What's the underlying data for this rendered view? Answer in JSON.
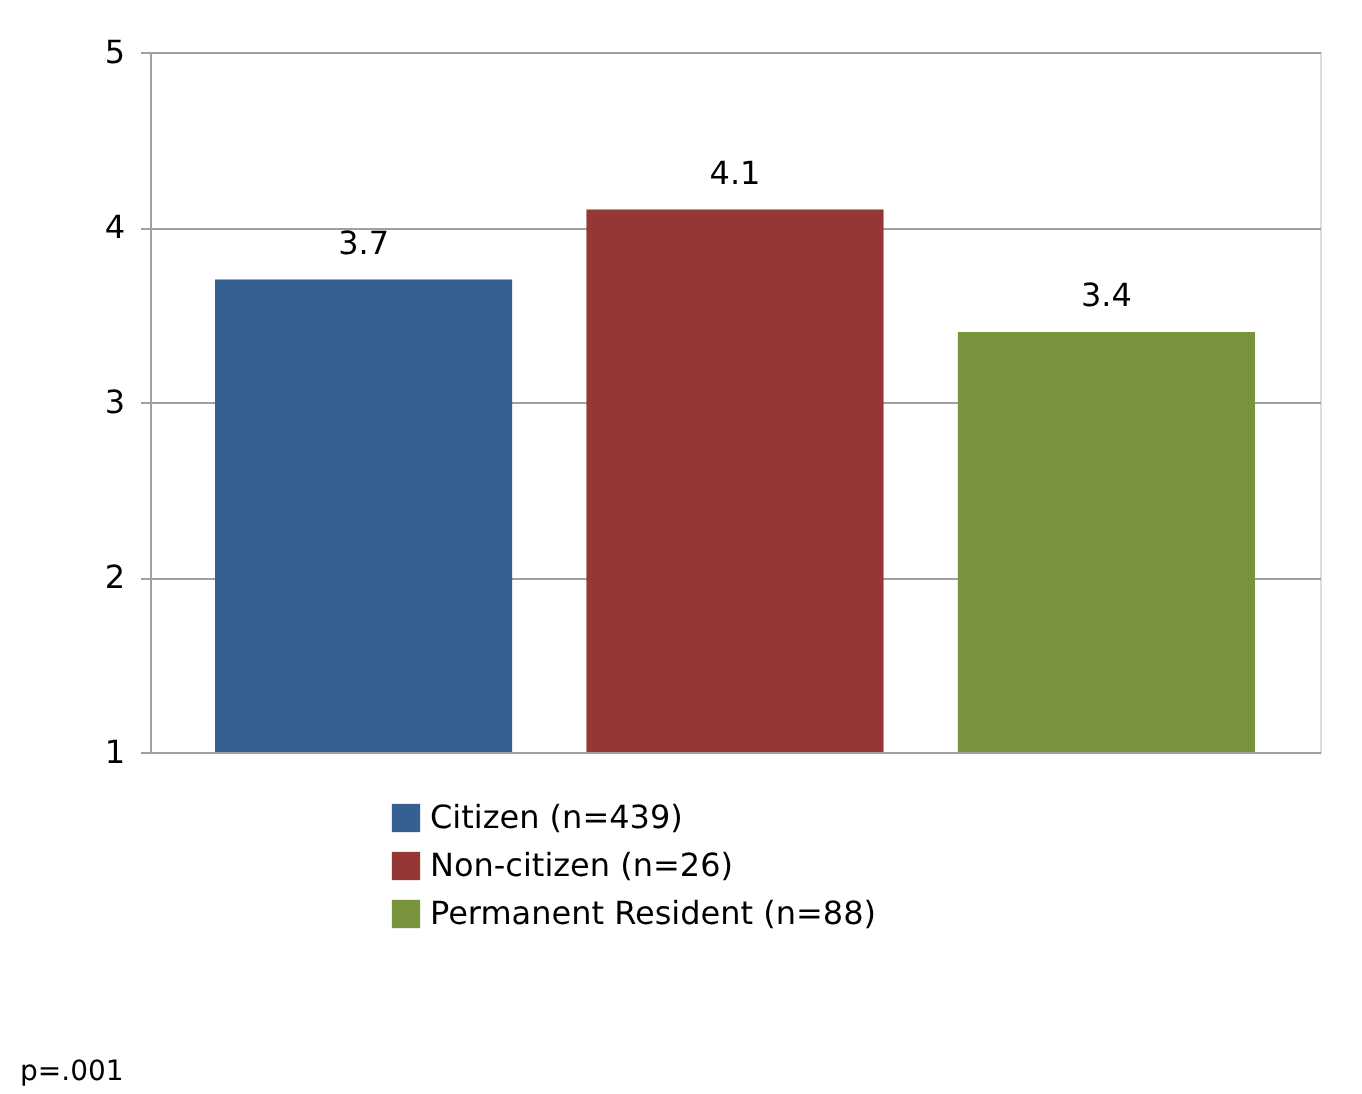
{
  "chart_data": {
    "type": "bar",
    "categories": [
      null
    ],
    "series": [
      {
        "name": "Citizen (n=439)",
        "color": "#376092",
        "values": [
          3.7
        ]
      },
      {
        "name": "Non-citizen (n=26)",
        "color": "#953735",
        "values": [
          4.1
        ]
      },
      {
        "name": "Permanent Resident (n=88)",
        "color": "#77933c",
        "values": [
          3.4
        ]
      }
    ],
    "ylim": [
      1,
      5
    ],
    "yticks": [
      1,
      2,
      3,
      4,
      5
    ],
    "grid": "y",
    "legend": "bottom",
    "data_labels": true,
    "annotations": [
      "p=.001"
    ]
  }
}
